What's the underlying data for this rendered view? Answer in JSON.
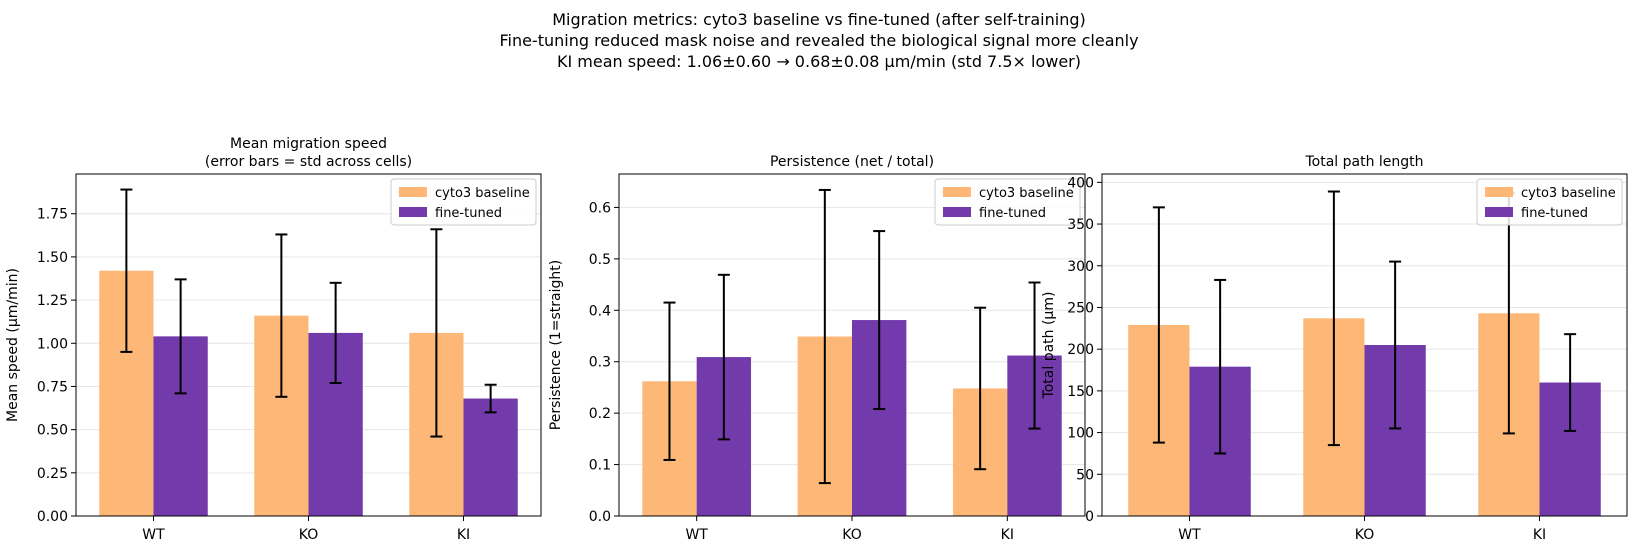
{
  "suptitle": [
    "Migration metrics: cyto3 baseline vs fine-tuned (after self-training)",
    "Fine-tuning reduced mask noise and revealed the biological signal more cleanly",
    "KI mean speed: 1.06±0.60 → 0.68±0.08 µm/min (std 7.5× lower)"
  ],
  "colors": {
    "baseline": "#fdb878",
    "finetuned": "#723aaa",
    "error": "#000000",
    "grid": "#e6e6e6"
  },
  "chart_data": [
    {
      "type": "bar",
      "title": [
        "Mean migration speed",
        "(error bars = std across cells)"
      ],
      "ylabel": "Mean speed (µm/min)",
      "categories": [
        "WT",
        "KO",
        "KI"
      ],
      "ylim": [
        0,
        1.98
      ],
      "yticks": [
        0.0,
        0.25,
        0.5,
        0.75,
        1.0,
        1.25,
        1.5,
        1.75
      ],
      "ytick_labels": [
        "0.00",
        "0.25",
        "0.50",
        "0.75",
        "1.00",
        "1.25",
        "1.50",
        "1.75"
      ],
      "grid": "horizontal",
      "legend_position": "top-right",
      "series": [
        {
          "name": "cyto3 baseline",
          "values": [
            1.42,
            1.16,
            1.06
          ],
          "errors": [
            0.47,
            0.47,
            0.6
          ]
        },
        {
          "name": "fine-tuned",
          "values": [
            1.04,
            1.06,
            0.68
          ],
          "errors": [
            0.33,
            0.29,
            0.08
          ]
        }
      ]
    },
    {
      "type": "bar",
      "title": [
        "Persistence (net / total)"
      ],
      "ylabel": "Persistence (1=straight)",
      "categories": [
        "WT",
        "KO",
        "KI"
      ],
      "ylim": [
        0,
        0.665
      ],
      "yticks": [
        0.0,
        0.1,
        0.2,
        0.3,
        0.4,
        0.5,
        0.6
      ],
      "ytick_labels": [
        "0.0",
        "0.1",
        "0.2",
        "0.3",
        "0.4",
        "0.5",
        "0.6"
      ],
      "grid": "horizontal",
      "legend_position": "top-right",
      "series": [
        {
          "name": "cyto3 baseline",
          "values": [
            0.262,
            0.349,
            0.248
          ],
          "errors": [
            0.153,
            0.285,
            0.157
          ]
        },
        {
          "name": "fine-tuned",
          "values": [
            0.309,
            0.381,
            0.312
          ],
          "errors": [
            0.16,
            0.173,
            0.142
          ]
        }
      ]
    },
    {
      "type": "bar",
      "title": [
        "Total path length"
      ],
      "ylabel": "Total path (µm)",
      "categories": [
        "WT",
        "KO",
        "KI"
      ],
      "ylim": [
        0,
        410
      ],
      "yticks": [
        0,
        50,
        100,
        150,
        200,
        250,
        300,
        350,
        400
      ],
      "ytick_labels": [
        "0",
        "50",
        "100",
        "150",
        "200",
        "250",
        "300",
        "350",
        "400"
      ],
      "grid": "horizontal",
      "legend_position": "top-right",
      "series": [
        {
          "name": "cyto3 baseline",
          "values": [
            229,
            237,
            243
          ],
          "errors": [
            141,
            152,
            144
          ]
        },
        {
          "name": "fine-tuned",
          "values": [
            179,
            205,
            160
          ],
          "errors": [
            104,
            100,
            58
          ]
        }
      ]
    }
  ]
}
